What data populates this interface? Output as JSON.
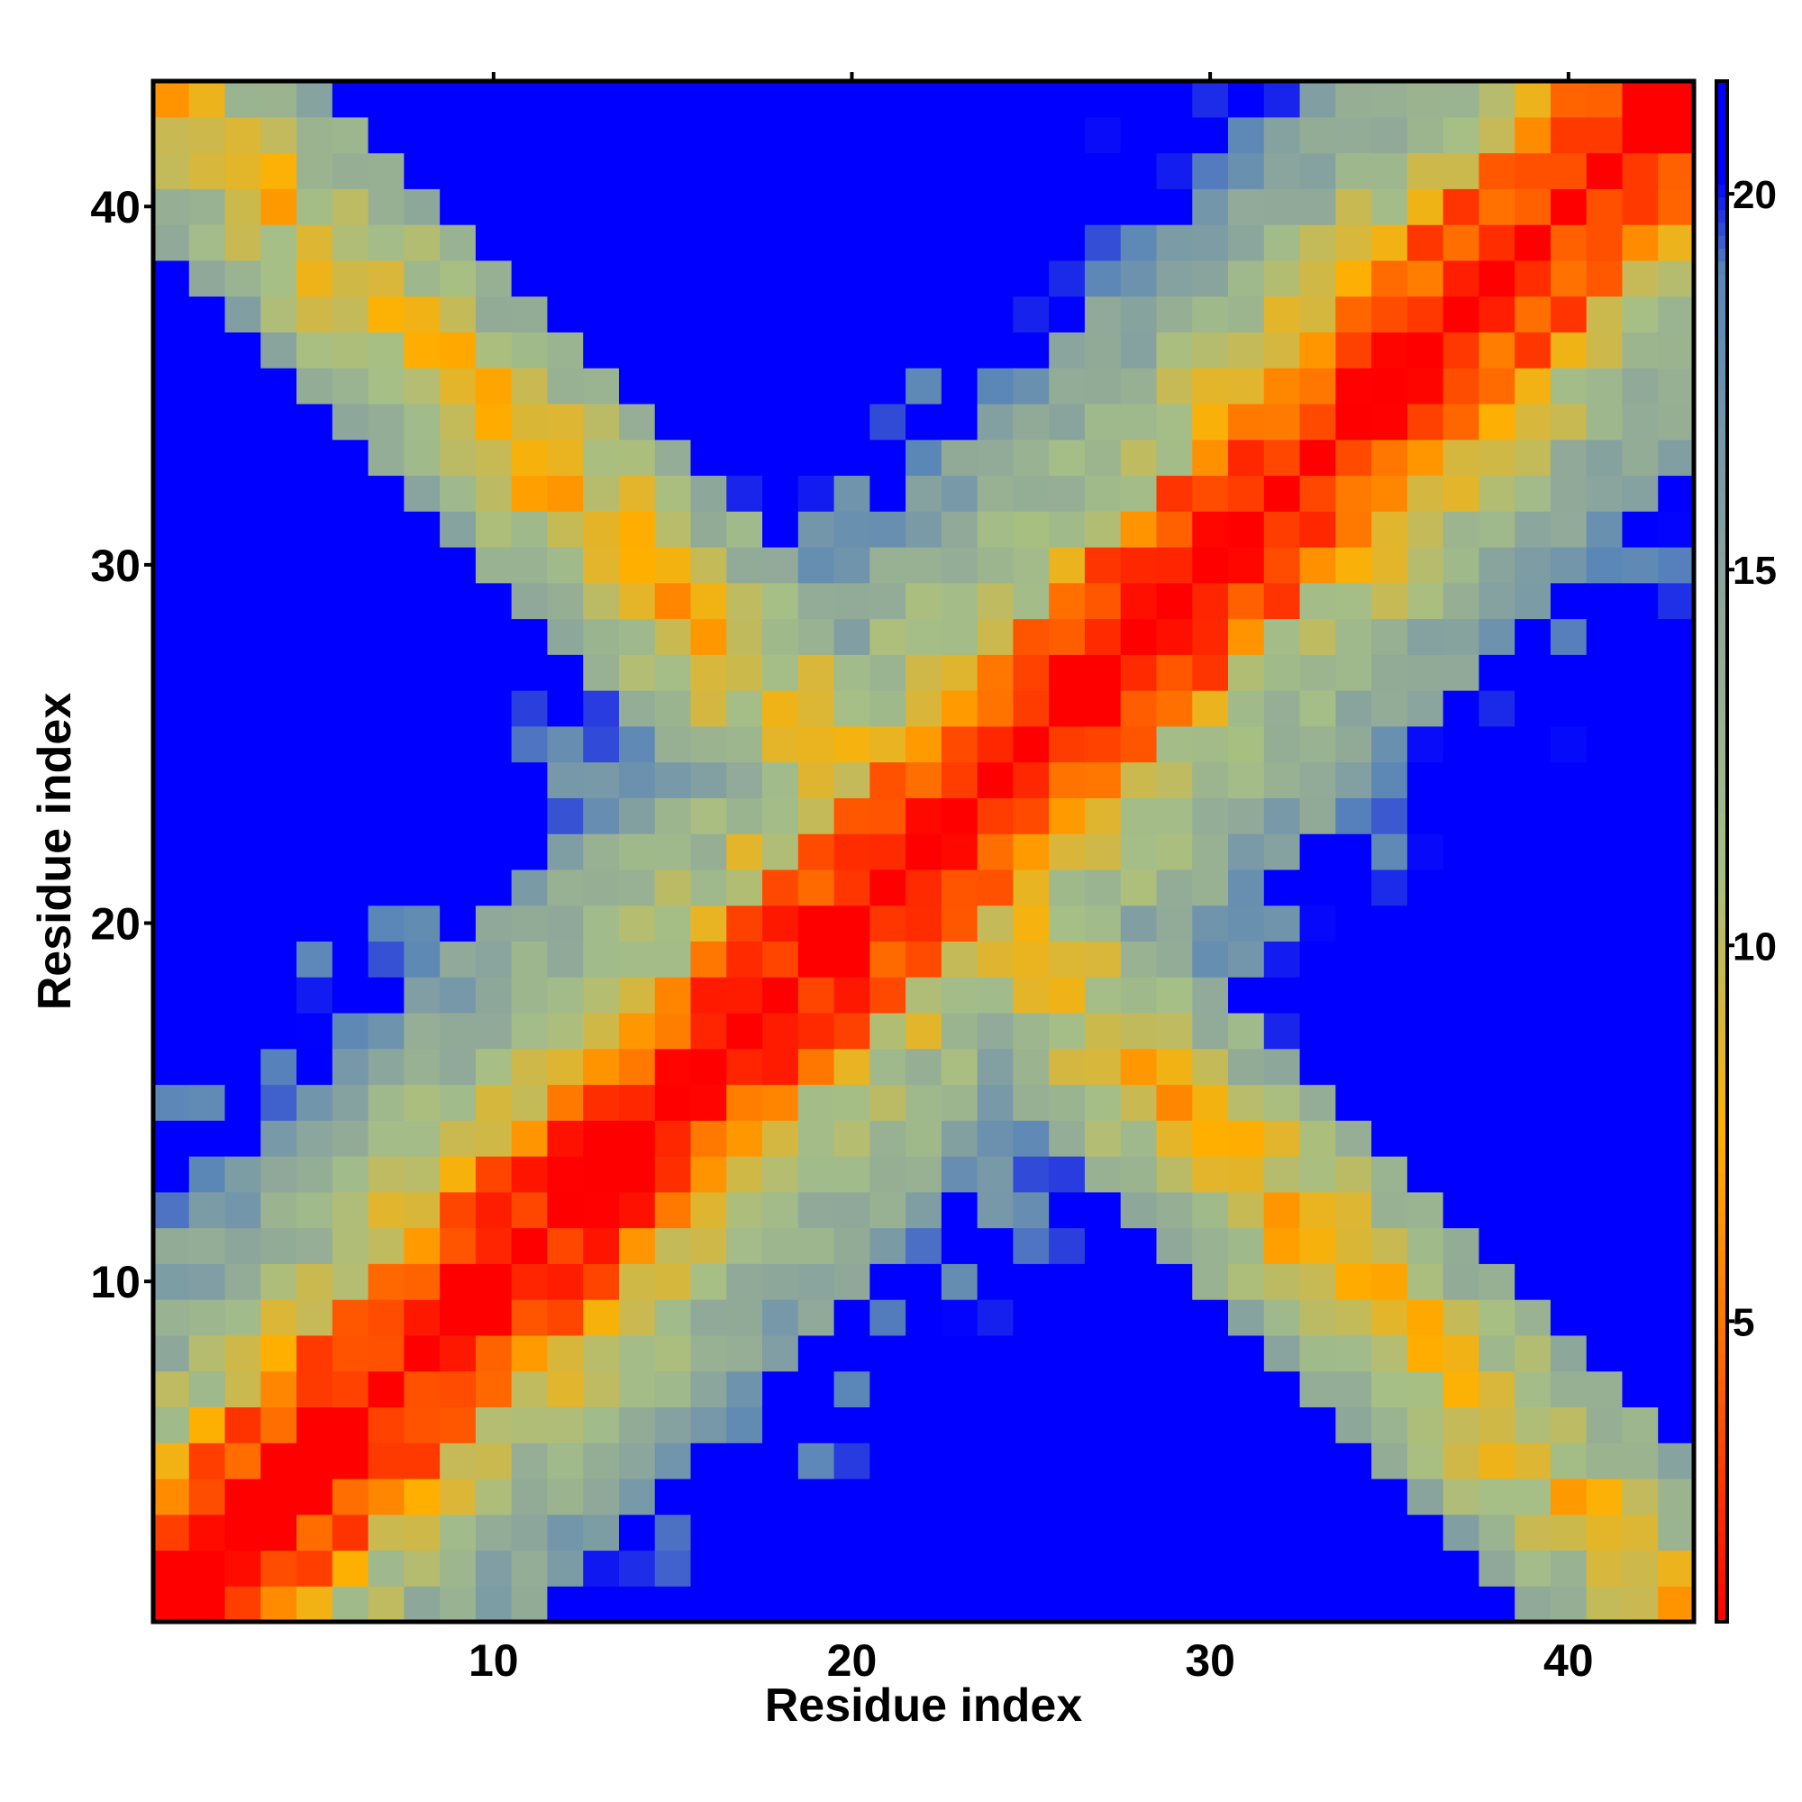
{
  "chart_data": {
    "type": "heatmap",
    "title": "",
    "xlabel": "Residue index",
    "ylabel": "Residue index",
    "x_range": [
      1,
      43
    ],
    "y_range": [
      1,
      43
    ],
    "x_ticks": [
      10,
      20,
      30,
      40
    ],
    "y_ticks": [
      10,
      20,
      30,
      40
    ],
    "x_tick_labels": [
      "10",
      "20",
      "30",
      "40"
    ],
    "y_tick_labels": [
      "10",
      "20",
      "30",
      "40"
    ],
    "grid": false,
    "legend": "colorbar-right",
    "colorbar": {
      "range": [
        1,
        21.5
      ],
      "ticks": [
        5,
        10,
        15,
        20
      ],
      "tick_labels": [
        "5",
        "10",
        "15",
        "20"
      ],
      "stops": [
        {
          "value": 1,
          "color": "#ff0000"
        },
        {
          "value": 4.5,
          "color": "#ff6a00"
        },
        {
          "value": 7.5,
          "color": "#ffb000"
        },
        {
          "value": 11,
          "color": "#a6bf86"
        },
        {
          "value": 14.5,
          "color": "#8fa89a"
        },
        {
          "value": 19,
          "color": "#5a86b8"
        },
        {
          "value": 20.2,
          "color": "#0000ff"
        }
      ]
    },
    "matrix_note": "symmetric residue-distance map; values ≈ distance in Å between residues i and j",
    "model": {
      "n": 43,
      "helix_segments": [
        [
          1,
          43
        ]
      ],
      "crossing_band_center_sum": 44,
      "crossing_band_halfwidth": 4
    }
  }
}
